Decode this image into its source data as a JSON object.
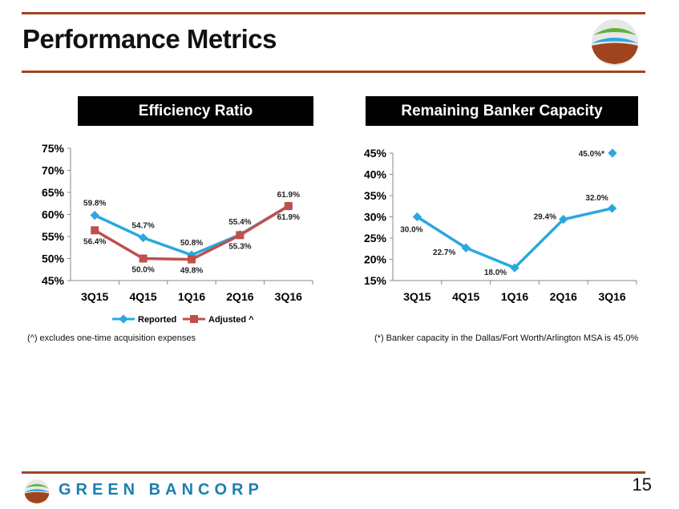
{
  "page": {
    "title": "Performance Metrics",
    "page_number": "15",
    "brand_name": "GREEN BANCORP",
    "colors": {
      "rule": "#a0441e",
      "header_bg": "#000000",
      "reported": "#29a8e0",
      "adjusted": "#c0504d",
      "capacity": "#29a8e0"
    }
  },
  "panels": {
    "left": {
      "header": "Efficiency Ratio",
      "footnote": "(^) excludes  one-time acquisition expenses"
    },
    "right": {
      "header": "Remaining Banker Capacity",
      "footnote": "(*) Banker capacity in the Dallas/Fort Worth/Arlington MSA is 45.0%"
    }
  },
  "chart_data": [
    {
      "type": "line",
      "title": "Efficiency Ratio",
      "categories": [
        "3Q15",
        "4Q15",
        "1Q16",
        "2Q16",
        "3Q16"
      ],
      "ylim": [
        45,
        75
      ],
      "yticks": [
        "45%",
        "50%",
        "55%",
        "60%",
        "65%",
        "70%",
        "75%"
      ],
      "series": [
        {
          "name": "Reported",
          "values": [
            59.8,
            54.7,
            50.8,
            55.4,
            61.9
          ],
          "labels": [
            "59.8%",
            "54.7%",
            "50.8%",
            "55.4%",
            "61.9%"
          ]
        },
        {
          "name": "Adjusted ^",
          "values": [
            56.4,
            50.0,
            49.8,
            55.3,
            61.9
          ],
          "labels": [
            "56.4%",
            "50.0%",
            "49.8%",
            "55.3%",
            "61.9%"
          ]
        }
      ],
      "legend": "bottom"
    },
    {
      "type": "line",
      "title": "Remaining Banker Capacity",
      "categories": [
        "3Q15",
        "4Q15",
        "1Q16",
        "2Q16",
        "3Q16"
      ],
      "ylim": [
        15,
        45
      ],
      "yticks": [
        "15%",
        "20%",
        "25%",
        "30%",
        "35%",
        "40%",
        "45%"
      ],
      "series": [
        {
          "name": "Remaining Banker Capacity",
          "values": [
            30.0,
            22.7,
            18.0,
            29.4,
            32.0
          ],
          "labels": [
            "30.0%",
            "22.7%",
            "18.0%",
            "29.4%",
            "32.0%"
          ]
        }
      ],
      "annotation": {
        "value": 45.0,
        "label": "45.0%*"
      }
    }
  ]
}
